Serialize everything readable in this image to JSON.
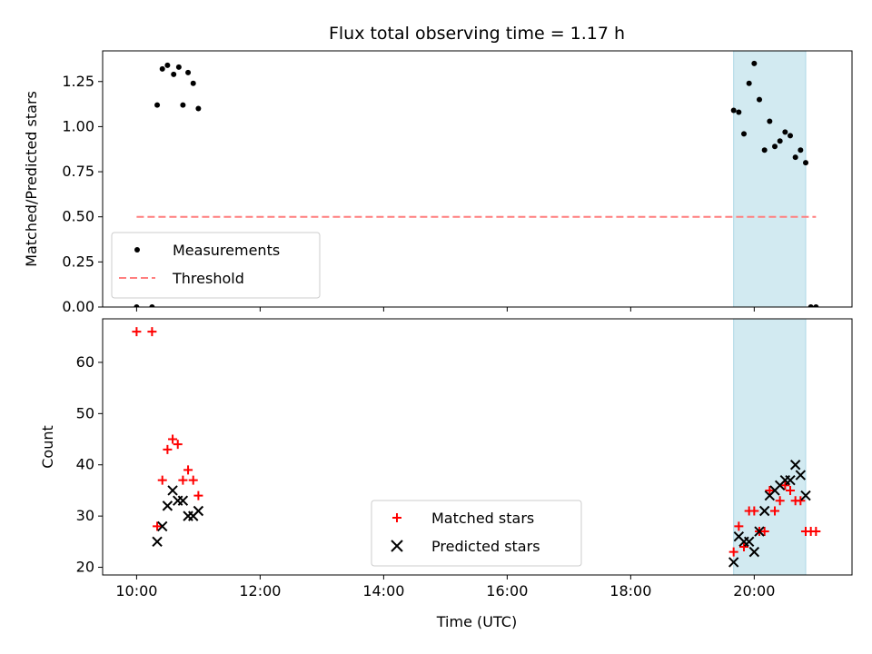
{
  "chart_data": [
    {
      "type": "scatter",
      "title": "Flux total observing time = 1.17 h",
      "xlabel": "",
      "ylabel": "Matched/Predicted stars",
      "xlim": [
        "09:27",
        "21:35"
      ],
      "ylim": [
        0,
        1.42
      ],
      "yticks": [
        0,
        0.25,
        0.5,
        0.75,
        1.0,
        1.25
      ],
      "ytick_labels": [
        "0.00",
        "0.25",
        "0.50",
        "0.75",
        "1.00",
        "1.25"
      ],
      "shaded_interval": {
        "start": "19:40",
        "end": "20:50",
        "color": "#add8e6"
      },
      "legend": {
        "placement": "lower left"
      },
      "series": [
        {
          "name": "Measurements",
          "marker": "dot",
          "color": "#000000",
          "points": [
            [
              "10:00",
              0.0
            ],
            [
              "10:15",
              0.0
            ],
            [
              "10:20",
              1.12
            ],
            [
              "10:25",
              1.32
            ],
            [
              "10:30",
              1.34
            ],
            [
              "10:36",
              1.29
            ],
            [
              "10:41",
              1.33
            ],
            [
              "10:45",
              1.12
            ],
            [
              "10:50",
              1.3
            ],
            [
              "10:55",
              1.24
            ],
            [
              "11:00",
              1.1
            ],
            [
              "19:40",
              1.09
            ],
            [
              "19:45",
              1.08
            ],
            [
              "19:50",
              0.96
            ],
            [
              "19:55",
              1.24
            ],
            [
              "20:00",
              1.35
            ],
            [
              "20:05",
              1.15
            ],
            [
              "20:10",
              0.87
            ],
            [
              "20:15",
              1.03
            ],
            [
              "20:20",
              0.89
            ],
            [
              "20:25",
              0.92
            ],
            [
              "20:30",
              0.97
            ],
            [
              "20:35",
              0.95
            ],
            [
              "20:40",
              0.83
            ],
            [
              "20:45",
              0.87
            ],
            [
              "20:50",
              0.8
            ],
            [
              "20:55",
              0.0
            ],
            [
              "21:00",
              0.0
            ]
          ]
        },
        {
          "name": "Threshold",
          "type": "line",
          "dash": true,
          "color": "#ff7f7f",
          "points": [
            [
              "10:00",
              0.5
            ],
            [
              "21:00",
              0.5
            ]
          ]
        }
      ]
    },
    {
      "type": "scatter",
      "title": "",
      "xlabel": "Time (UTC)",
      "ylabel": "Count",
      "xlim": [
        "09:27",
        "21:35"
      ],
      "ylim": [
        18.5,
        68.5
      ],
      "yticks": [
        20,
        30,
        40,
        50,
        60
      ],
      "ytick_labels": [
        "20",
        "30",
        "40",
        "50",
        "60"
      ],
      "xticks": [
        "10:00",
        "12:00",
        "14:00",
        "16:00",
        "18:00",
        "20:00"
      ],
      "shaded_interval": {
        "start": "19:40",
        "end": "20:50",
        "color": "#add8e6"
      },
      "legend": {
        "placement": "lower center"
      },
      "series": [
        {
          "name": "Matched stars",
          "marker": "plus",
          "color": "#ff0000",
          "points": [
            [
              "10:00",
              66
            ],
            [
              "10:15",
              66
            ],
            [
              "10:20",
              28
            ],
            [
              "10:25",
              37
            ],
            [
              "10:30",
              43
            ],
            [
              "10:35",
              45
            ],
            [
              "10:40",
              44
            ],
            [
              "10:45",
              37
            ],
            [
              "10:50",
              39
            ],
            [
              "10:55",
              37
            ],
            [
              "11:00",
              34
            ],
            [
              "19:40",
              23
            ],
            [
              "19:45",
              28
            ],
            [
              "19:50",
              24
            ],
            [
              "19:55",
              31
            ],
            [
              "20:00",
              31
            ],
            [
              "20:05",
              27
            ],
            [
              "20:10",
              27
            ],
            [
              "20:15",
              35
            ],
            [
              "20:20",
              31
            ],
            [
              "20:25",
              33
            ],
            [
              "20:30",
              36
            ],
            [
              "20:35",
              35
            ],
            [
              "20:40",
              33
            ],
            [
              "20:45",
              33
            ],
            [
              "20:50",
              27
            ],
            [
              "20:55",
              27
            ],
            [
              "21:00",
              27
            ]
          ]
        },
        {
          "name": "Predicted stars",
          "marker": "x",
          "color": "#000000",
          "points": [
            [
              "10:20",
              25
            ],
            [
              "10:25",
              28
            ],
            [
              "10:30",
              32
            ],
            [
              "10:35",
              35
            ],
            [
              "10:40",
              33
            ],
            [
              "10:45",
              33
            ],
            [
              "10:50",
              30
            ],
            [
              "10:55",
              30
            ],
            [
              "11:00",
              31
            ],
            [
              "19:40",
              21
            ],
            [
              "19:45",
              26
            ],
            [
              "19:50",
              25
            ],
            [
              "19:55",
              25
            ],
            [
              "20:00",
              23
            ],
            [
              "20:05",
              27
            ],
            [
              "20:10",
              31
            ],
            [
              "20:15",
              34
            ],
            [
              "20:20",
              35
            ],
            [
              "20:25",
              36
            ],
            [
              "20:30",
              37
            ],
            [
              "20:35",
              37
            ],
            [
              "20:40",
              40
            ],
            [
              "20:45",
              38
            ],
            [
              "20:50",
              34
            ]
          ]
        }
      ]
    }
  ]
}
